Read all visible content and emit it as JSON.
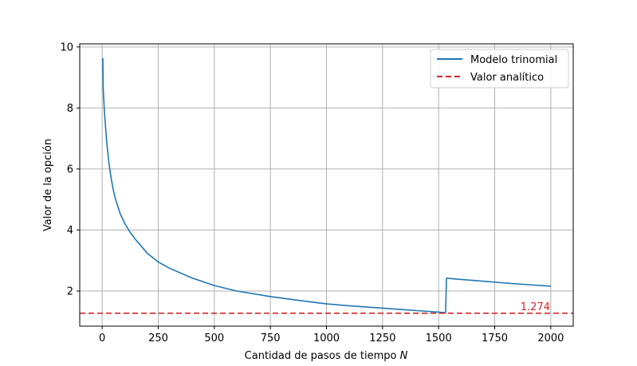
{
  "chart_data": {
    "type": "line",
    "title": "",
    "xlabel": "Cantidad de pasos de tiempo ",
    "xlabel_italic": "N",
    "ylabel": "Valor de la opción",
    "xlim": [
      -100,
      2100
    ],
    "ylim": [
      0.85,
      10.1
    ],
    "xticks": [
      0,
      250,
      500,
      750,
      1000,
      1250,
      1500,
      1750,
      2000
    ],
    "yticks": [
      2,
      4,
      6,
      8,
      10
    ],
    "grid": true,
    "legend_position": "top-right",
    "colors": {
      "model": "#1f77b4",
      "analytic": "#d62728",
      "grid": "#b0b0b0"
    },
    "series": [
      {
        "name": "Modelo trinomial",
        "style": "solid",
        "x": [
          1,
          3,
          5,
          10,
          20,
          30,
          40,
          50,
          60,
          80,
          100,
          125,
          150,
          200,
          250,
          300,
          400,
          500,
          600,
          750,
          900,
          1000,
          1100,
          1250,
          1400,
          1500,
          1530,
          1531,
          1535,
          1600,
          1700,
          1800,
          1900,
          2000
        ],
        "y": [
          9.55,
          9.62,
          8.6,
          7.9,
          6.9,
          6.2,
          5.7,
          5.3,
          5.0,
          4.55,
          4.22,
          3.92,
          3.68,
          3.25,
          2.95,
          2.75,
          2.43,
          2.18,
          2.0,
          1.82,
          1.67,
          1.58,
          1.52,
          1.44,
          1.36,
          1.31,
          1.29,
          1.29,
          2.42,
          2.38,
          2.32,
          2.26,
          2.21,
          2.16
        ]
      },
      {
        "name": "Valor analítico",
        "style": "dashed",
        "value": 1.274
      }
    ],
    "annotation": "1.274"
  }
}
